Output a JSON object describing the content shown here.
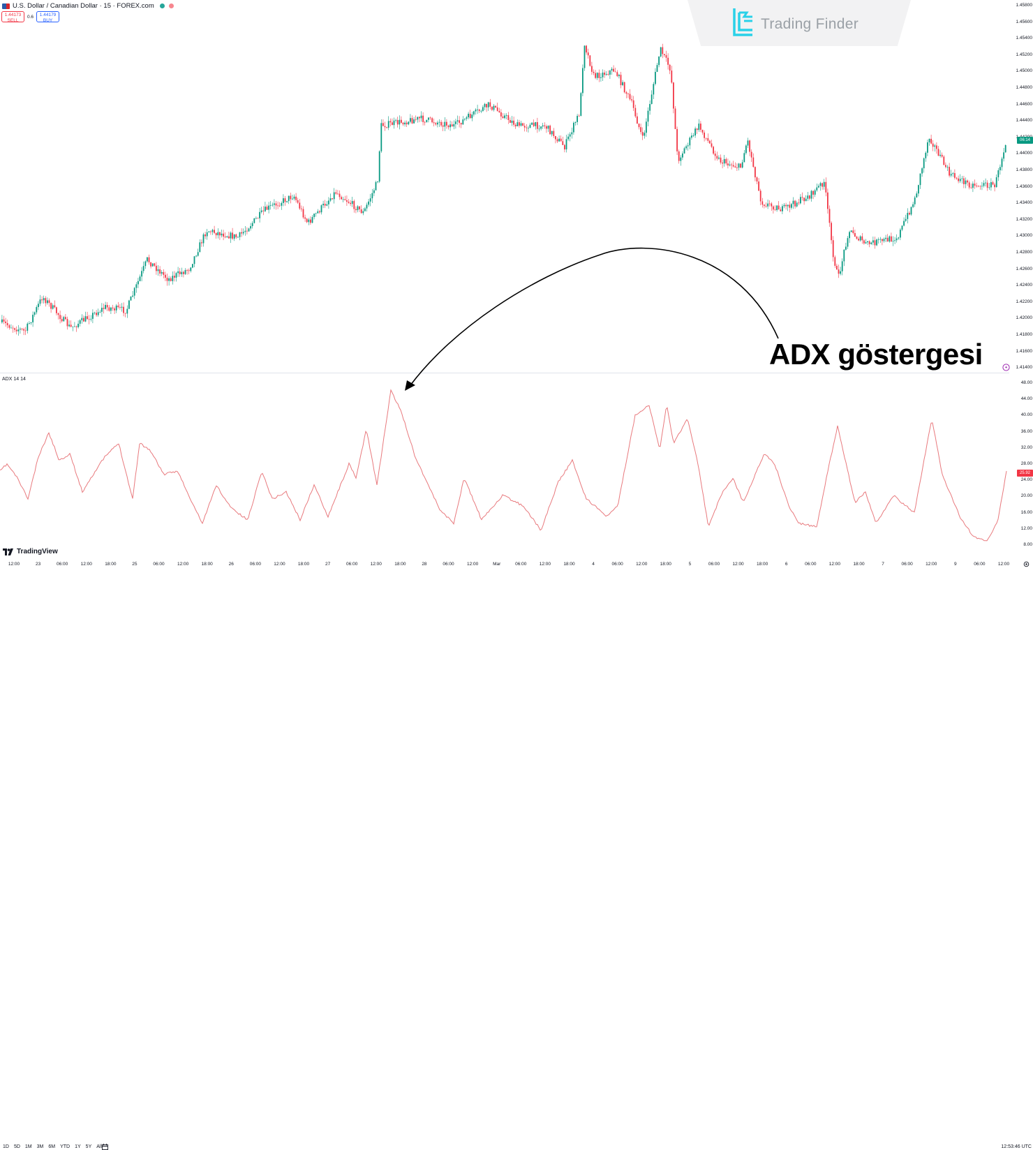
{
  "header": {
    "symbol": "U.S. Dollar / Canadian Dollar · 15 · FOREX.com",
    "sell_price": "1.44173",
    "sell_label": "SELL",
    "spread": "0.6",
    "buy_price": "1.44179",
    "buy_label": "BUY"
  },
  "logo": {
    "text": "Trading Finder"
  },
  "price_axis": {
    "labels": [
      "1.45800",
      "1.45600",
      "1.45400",
      "1.45200",
      "1.45000",
      "1.44800",
      "1.44600",
      "1.44400",
      "1.44200",
      "1.44000",
      "1.43800",
      "1.43600",
      "1.43400",
      "1.43200",
      "1.43000",
      "1.42800",
      "1.42600",
      "1.42400",
      "1.42200",
      "1.42000",
      "1.41800",
      "1.41600",
      "1.41400"
    ],
    "current_price_countdown": "06:14"
  },
  "indicator": {
    "label": "ADX 14 14",
    "axis_labels": [
      "48.00",
      "44.00",
      "40.00",
      "36.00",
      "32.00",
      "28.00",
      "24.00",
      "20.00",
      "16.00",
      "12.00",
      "8.00"
    ],
    "current_value": "25.92"
  },
  "time_axis": {
    "labels": [
      "12:00",
      "23",
      "06:00",
      "12:00",
      "18:00",
      "25",
      "06:00",
      "12:00",
      "18:00",
      "26",
      "06:00",
      "12:00",
      "18:00",
      "27",
      "06:00",
      "12:00",
      "18:00",
      "28",
      "06:00",
      "12:00",
      "Mar",
      "06:00",
      "12:00",
      "18:00",
      "4",
      "06:00",
      "12:00",
      "18:00",
      "5",
      "06:00",
      "12:00",
      "18:00",
      "6",
      "06:00",
      "12:00",
      "18:00",
      "7",
      "06:00",
      "12:00",
      "9",
      "06:00",
      "12:00"
    ]
  },
  "annotation": {
    "text": "ADX göstergesi"
  },
  "branding": {
    "text": "TradingView"
  },
  "bottom_bar": {
    "ranges": [
      "1D",
      "5D",
      "1M",
      "3M",
      "6M",
      "YTD",
      "1Y",
      "5Y",
      "All"
    ],
    "clock": "12:53:46 UTC"
  },
  "colors": {
    "up": "#089981",
    "down": "#f23645",
    "adx_line": "#e8797d",
    "text": "#131722"
  }
}
